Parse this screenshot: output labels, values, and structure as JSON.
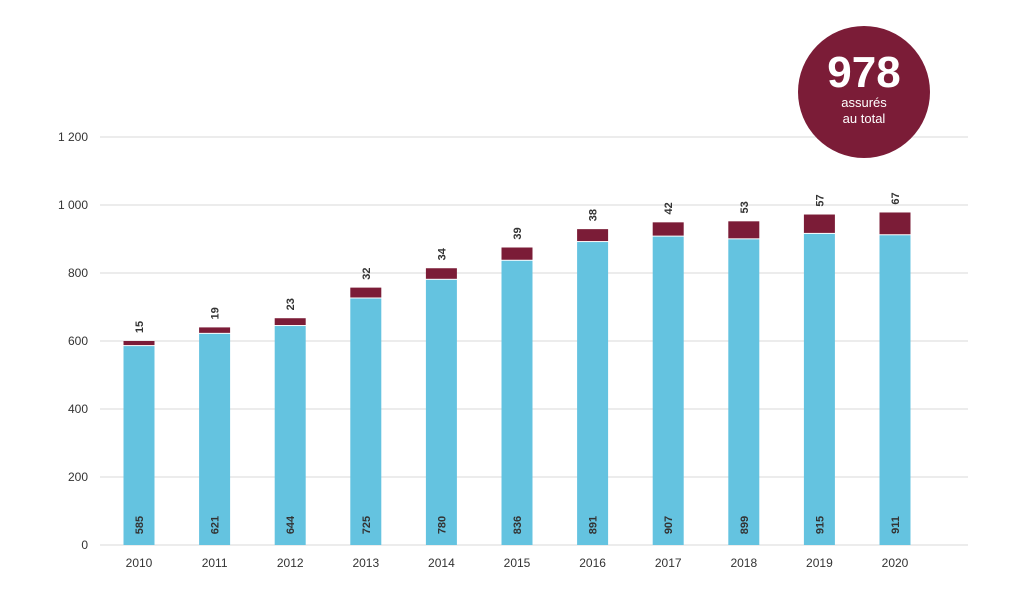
{
  "chart_data": {
    "type": "bar",
    "stacked": true,
    "categories": [
      "2010",
      "2011",
      "2012",
      "2013",
      "2014",
      "2015",
      "2016",
      "2017",
      "2018",
      "2019",
      "2020"
    ],
    "series": [
      {
        "values": [
          585,
          621,
          644,
          725,
          780,
          836,
          891,
          907,
          899,
          915,
          911
        ],
        "color": "#64c3e0"
      },
      {
        "values": [
          15,
          19,
          23,
          32,
          34,
          39,
          38,
          42,
          53,
          57,
          67
        ],
        "color": "#7b1c37"
      }
    ],
    "yticks": [
      "0",
      "200",
      "400",
      "600",
      "800",
      "1 000",
      "1 200"
    ],
    "ylim": [
      0,
      1200
    ],
    "grid": true,
    "legend": "none"
  },
  "badge": {
    "number": "978",
    "line1": "assurés",
    "line2": "au total",
    "color": "#7b1c37"
  }
}
